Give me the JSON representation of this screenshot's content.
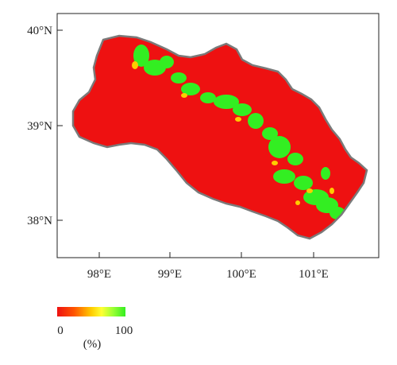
{
  "map": {
    "lat_labels": [
      "40°N",
      "39°N",
      "38°N"
    ],
    "lon_labels": [
      "98°E",
      "99°E",
      "100°E",
      "101°E"
    ],
    "fill_low_color": "#ee1111",
    "fill_high_color": "#33ee22",
    "border_color": "#7a7a7a"
  },
  "legend": {
    "min_label": "0",
    "max_label": "100",
    "unit_label": "(%)",
    "colors": [
      "#ee1111",
      "#ff6600",
      "#ffcc00",
      "#ffff33",
      "#99ff33",
      "#33ee22"
    ]
  }
}
